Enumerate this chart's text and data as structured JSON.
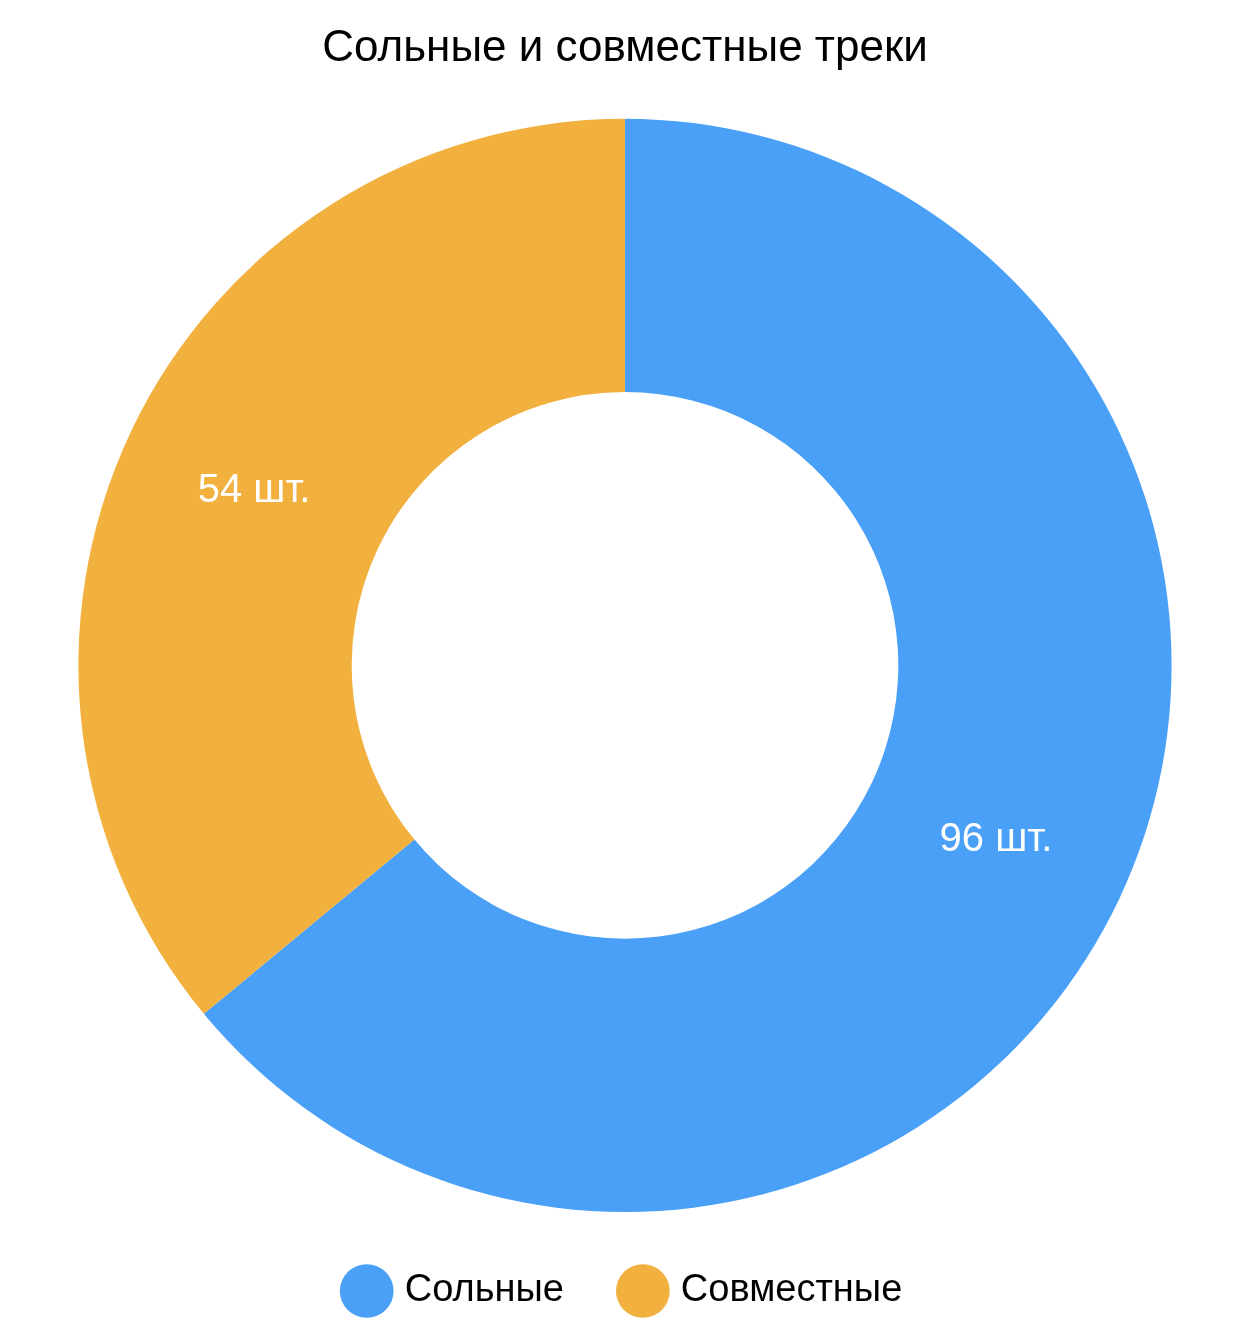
{
  "chart_data": {
    "type": "donut",
    "title": "Сольные и совместные треки",
    "categories": [
      "Сольные",
      "Совместные"
    ],
    "values": [
      96,
      54
    ],
    "colors": [
      "#4aa0f7",
      "#f2b13e"
    ],
    "value_labels": [
      "96 шт.",
      "54 шт."
    ],
    "legend": "bottom"
  }
}
